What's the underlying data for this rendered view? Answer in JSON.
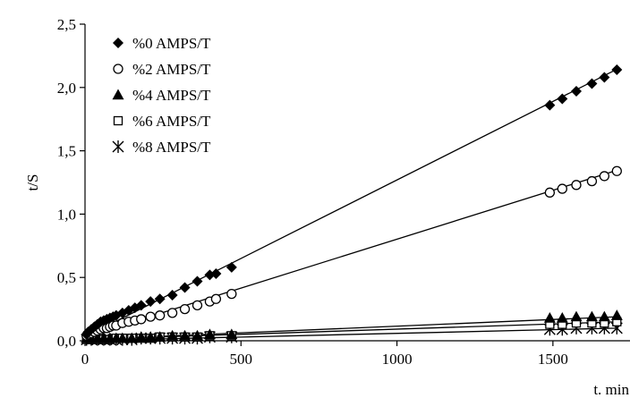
{
  "chart_data": {
    "type": "scatter",
    "xlabel": "t. min",
    "ylabel": "t/S",
    "xlim": [
      0,
      1750
    ],
    "ylim": [
      0,
      2.5
    ],
    "x_ticks": [
      "0",
      "500",
      "1000",
      "1500"
    ],
    "x_tick_values": [
      0,
      500,
      1000,
      1500
    ],
    "y_ticks": [
      "0,0",
      "0,5",
      "1,0",
      "1,5",
      "2,0",
      "2,5"
    ],
    "y_tick_values": [
      0,
      0.5,
      1.0,
      1.5,
      2.0,
      2.5
    ],
    "grid": false,
    "legend_position": "top-left",
    "series": [
      {
        "name": "%0 AMPS/T",
        "marker": "diamond-filled",
        "color": "#000000",
        "x": [
          5,
          10,
          20,
          30,
          40,
          50,
          60,
          70,
          80,
          90,
          100,
          120,
          140,
          160,
          180,
          210,
          240,
          280,
          320,
          360,
          400,
          420,
          470,
          1490,
          1530,
          1575,
          1625,
          1665,
          1705
        ],
        "y": [
          0.05,
          0.07,
          0.09,
          0.11,
          0.13,
          0.15,
          0.16,
          0.17,
          0.18,
          0.19,
          0.2,
          0.22,
          0.24,
          0.26,
          0.28,
          0.31,
          0.33,
          0.36,
          0.42,
          0.47,
          0.52,
          0.53,
          0.58,
          1.86,
          1.91,
          1.97,
          2.03,
          2.08,
          2.14
        ],
        "fit": [
          [
            0,
            0.03
          ],
          [
            1710,
            2.15
          ]
        ]
      },
      {
        "name": "%2 AMPS/T",
        "marker": "circle-open",
        "color": "#000000",
        "x": [
          5,
          10,
          20,
          30,
          40,
          50,
          60,
          70,
          80,
          90,
          100,
          120,
          140,
          160,
          180,
          210,
          240,
          280,
          320,
          360,
          400,
          420,
          470,
          1490,
          1530,
          1575,
          1625,
          1665,
          1705
        ],
        "y": [
          0.04,
          0.05,
          0.06,
          0.07,
          0.08,
          0.09,
          0.1,
          0.1,
          0.11,
          0.12,
          0.12,
          0.14,
          0.15,
          0.16,
          0.17,
          0.19,
          0.2,
          0.22,
          0.25,
          0.28,
          0.31,
          0.33,
          0.37,
          1.17,
          1.2,
          1.23,
          1.26,
          1.3,
          1.34
        ],
        "fit": [
          [
            0,
            0.03
          ],
          [
            1710,
            1.35
          ]
        ]
      },
      {
        "name": "%4 AMPS/T",
        "marker": "triangle-filled",
        "color": "#000000",
        "x": [
          5,
          20,
          40,
          60,
          80,
          100,
          120,
          150,
          180,
          210,
          240,
          280,
          320,
          360,
          400,
          470,
          1490,
          1530,
          1575,
          1625,
          1665,
          1705
        ],
        "y": [
          0.02,
          0.02,
          0.02,
          0.02,
          0.02,
          0.02,
          0.02,
          0.02,
          0.03,
          0.03,
          0.03,
          0.04,
          0.04,
          0.04,
          0.05,
          0.05,
          0.18,
          0.18,
          0.19,
          0.19,
          0.19,
          0.2
        ],
        "fit": [
          [
            0,
            0.01
          ],
          [
            1710,
            0.19
          ]
        ]
      },
      {
        "name": "%6 AMPS/T",
        "marker": "square-open",
        "color": "#000000",
        "x": [
          5,
          20,
          40,
          60,
          80,
          100,
          120,
          150,
          180,
          210,
          240,
          280,
          320,
          360,
          400,
          470,
          1490,
          1530,
          1575,
          1625,
          1665,
          1705
        ],
        "y": [
          0.01,
          0.01,
          0.01,
          0.01,
          0.01,
          0.02,
          0.02,
          0.02,
          0.02,
          0.02,
          0.03,
          0.03,
          0.03,
          0.03,
          0.04,
          0.04,
          0.13,
          0.13,
          0.14,
          0.14,
          0.14,
          0.15
        ],
        "fit": [
          [
            0,
            0.01
          ],
          [
            1710,
            0.15
          ]
        ]
      },
      {
        "name": "%8 AMPS/T",
        "marker": "asterisk",
        "color": "#000000",
        "x": [
          5,
          20,
          40,
          60,
          80,
          100,
          120,
          150,
          180,
          210,
          240,
          280,
          320,
          360,
          400,
          470,
          1490,
          1530,
          1575,
          1625,
          1665,
          1705
        ],
        "y": [
          0.01,
          0.01,
          0.01,
          0.01,
          0.01,
          0.01,
          0.01,
          0.01,
          0.02,
          0.02,
          0.02,
          0.02,
          0.02,
          0.02,
          0.03,
          0.03,
          0.09,
          0.09,
          0.1,
          0.1,
          0.1,
          0.1
        ],
        "fit": [
          [
            0,
            0.0
          ],
          [
            1710,
            0.1
          ]
        ]
      }
    ]
  }
}
